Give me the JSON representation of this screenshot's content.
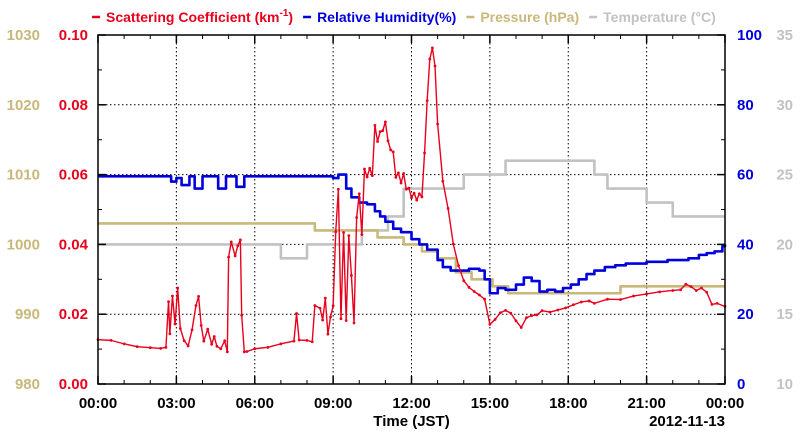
{
  "chart_data": {
    "type": "line",
    "title": "",
    "legend": [
      {
        "label": "Scattering Coefficient (km",
        "sup": "-1",
        "tail": ")",
        "color": "#e8001c"
      },
      {
        "label": "Relative Humidity(%)",
        "color": "#0000dd"
      },
      {
        "label": "Pressure (hPa)",
        "color": "#c8b87a"
      },
      {
        "label": "Temperature (°C)",
        "color": "#c2c2c2"
      }
    ],
    "legend_placement": "top",
    "xlabel": "Time (JST)",
    "date_label": "2012-11-13",
    "x_ticks": [
      "00:00",
      "03:00",
      "06:00",
      "09:00",
      "12:00",
      "15:00",
      "18:00",
      "21:00",
      "00:00"
    ],
    "x_range_hours": [
      0,
      24
    ],
    "grid": true,
    "axes": {
      "scattering": {
        "side": "left-inner",
        "range": [
          0,
          0.1
        ],
        "ticks": [
          "0.00",
          "0.02",
          "0.04",
          "0.06",
          "0.08",
          "0.10"
        ],
        "color": "#e8001c"
      },
      "pressure": {
        "side": "left-outer",
        "range": [
          980,
          1030
        ],
        "ticks": [
          "980",
          "990",
          "1000",
          "1010",
          "1020",
          "1030"
        ],
        "color": "#c8b87a"
      },
      "humidity": {
        "side": "right-inner",
        "range": [
          0,
          100
        ],
        "ticks": [
          "0",
          "20",
          "40",
          "60",
          "80",
          "100"
        ],
        "color": "#0000dd"
      },
      "temperature": {
        "side": "right-outer",
        "range": [
          10,
          35
        ],
        "ticks": [
          "10",
          "15",
          "20",
          "25",
          "30",
          "35"
        ],
        "color": "#c2c2c2"
      }
    },
    "series": [
      {
        "name": "Temperature",
        "axis": "temperature",
        "color": "#c2c2c2",
        "step": true,
        "x": [
          0,
          3.0,
          3.1,
          4.3,
          4.4,
          5.0,
          5.1,
          6.0,
          6.1,
          7.0,
          7.1,
          8.0,
          8.1,
          9.0,
          9.1,
          10.0,
          10.1,
          11.0,
          11.1,
          11.6,
          11.7,
          12.3,
          12.4,
          13.0,
          13.1,
          13.9,
          14.0,
          14.6,
          14.7,
          15.5,
          15.6,
          16.4,
          16.5,
          17.0,
          17.1,
          17.9,
          18.0,
          18.9,
          19.0,
          19.4,
          19.5,
          20.9,
          21.0,
          21.9,
          22.0,
          24.0
        ],
        "y": [
          20,
          20,
          20,
          20,
          20,
          20,
          20,
          20,
          20,
          19,
          19,
          20,
          20,
          20,
          20,
          20,
          21,
          21,
          22,
          22,
          24,
          24,
          24,
          24,
          24,
          24,
          25,
          25,
          25,
          25,
          26,
          26,
          26,
          26,
          26,
          26,
          26,
          26,
          25,
          25,
          24,
          24,
          23,
          23,
          22,
          22
        ]
      },
      {
        "name": "Pressure",
        "axis": "pressure",
        "color": "#c8b87a",
        "step": true,
        "x": [
          0,
          2.6,
          2.7,
          5.6,
          5.7,
          8.2,
          8.3,
          10.0,
          10.1,
          10.6,
          10.7,
          11.6,
          11.7,
          12.3,
          12.4,
          12.9,
          13.0,
          13.6,
          13.7,
          14.2,
          14.3,
          15.0,
          15.1,
          15.6,
          15.7,
          16.9,
          17.0,
          17.9,
          18.0,
          19.9,
          20.0,
          21.9,
          22.0,
          24.0
        ],
        "y": [
          1003,
          1003,
          1003,
          1003,
          1003,
          1003,
          1002,
          1002,
          1002,
          1002,
          1001,
          1001,
          1000,
          1000,
          999,
          999,
          998,
          998,
          996,
          996,
          995,
          995,
          994,
          994,
          993,
          993,
          993,
          993,
          993,
          993,
          994,
          994,
          994,
          994
        ]
      },
      {
        "name": "Relative Humidity",
        "axis": "humidity",
        "color": "#0000dd",
        "step": true,
        "x": [
          0,
          2.5,
          2.8,
          3.0,
          3.2,
          3.5,
          3.7,
          4.0,
          4.3,
          4.6,
          4.9,
          5.0,
          5.3,
          5.6,
          6.0,
          7.0,
          8.0,
          8.5,
          9.0,
          9.2,
          9.5,
          9.7,
          10.0,
          10.3,
          10.6,
          10.8,
          11.0,
          11.3,
          11.6,
          12.0,
          12.3,
          12.6,
          13.0,
          13.2,
          13.5,
          13.8,
          14.2,
          14.6,
          14.8,
          15.0,
          15.3,
          15.6,
          16.0,
          16.3,
          16.6,
          16.9,
          17.2,
          17.5,
          17.8,
          18.1,
          18.4,
          18.7,
          19.0,
          19.4,
          19.8,
          20.2,
          20.6,
          21.0,
          21.4,
          21.8,
          22.2,
          22.6,
          23.0,
          23.3,
          23.6,
          23.9,
          24.0
        ],
        "y": [
          59.5,
          59.5,
          58.0,
          59.0,
          57.0,
          59.5,
          56.0,
          59.5,
          59.5,
          56.0,
          59.5,
          59.5,
          56.5,
          59.5,
          59.5,
          59.5,
          59.5,
          59.5,
          59.0,
          60.0,
          56.0,
          53.5,
          52.0,
          51.5,
          49.5,
          48.0,
          46.5,
          44.5,
          43.5,
          41.5,
          40.0,
          38.5,
          35.5,
          33.5,
          32.5,
          32.5,
          33.0,
          32.5,
          30.0,
          26.0,
          27.5,
          27.0,
          28.5,
          30.5,
          29.5,
          26.5,
          27.0,
          26.5,
          27.5,
          28.5,
          30.0,
          31.5,
          32.5,
          33.5,
          34.0,
          34.5,
          34.5,
          35.0,
          35.0,
          35.5,
          35.5,
          36.0,
          37.0,
          37.5,
          38.0,
          39.5,
          40.0
        ]
      },
      {
        "name": "Scattering Coefficient",
        "axis": "scattering",
        "color": "#e8001c",
        "step": false,
        "markers": true,
        "x": [
          0,
          0.5,
          1.0,
          1.5,
          2.0,
          2.4,
          2.6,
          2.7,
          2.75,
          2.85,
          2.95,
          3.05,
          3.15,
          3.3,
          3.45,
          3.6,
          3.75,
          3.85,
          3.95,
          4.05,
          4.2,
          4.35,
          4.45,
          4.55,
          4.7,
          4.85,
          4.95,
          5.0,
          5.1,
          5.25,
          5.35,
          5.45,
          5.5,
          5.6,
          5.7,
          6.0,
          6.5,
          7.0,
          7.5,
          7.6,
          7.7,
          8.0,
          8.2,
          8.3,
          8.5,
          8.6,
          8.7,
          8.8,
          8.9,
          9.0,
          9.1,
          9.2,
          9.3,
          9.4,
          9.5,
          9.6,
          9.7,
          9.8,
          9.9,
          10.0,
          10.1,
          10.2,
          10.3,
          10.4,
          10.5,
          10.6,
          10.7,
          10.8,
          10.9,
          11.0,
          11.1,
          11.2,
          11.3,
          11.4,
          11.5,
          11.6,
          11.7,
          11.8,
          11.9,
          12.0,
          12.1,
          12.2,
          12.3,
          12.4,
          12.5,
          12.6,
          12.7,
          12.8,
          12.9,
          13.0,
          13.2,
          13.4,
          13.6,
          13.8,
          14.0,
          14.2,
          14.4,
          14.6,
          14.8,
          15.0,
          15.2,
          15.4,
          15.6,
          15.8,
          16.0,
          16.2,
          16.4,
          16.6,
          16.8,
          17.0,
          17.3,
          17.6,
          17.9,
          18.2,
          18.5,
          18.8,
          19.0,
          19.5,
          20.0,
          20.5,
          21.0,
          21.5,
          22.0,
          22.3,
          22.5,
          22.7,
          22.9,
          23.1,
          23.3,
          23.5,
          23.7,
          24.0
        ],
        "y": [
          0.0127,
          0.0125,
          0.0115,
          0.0107,
          0.0104,
          0.0102,
          0.0105,
          0.0236,
          0.0144,
          0.0252,
          0.0172,
          0.0275,
          0.0159,
          0.0124,
          0.0109,
          0.0155,
          0.0225,
          0.0251,
          0.0168,
          0.0123,
          0.0157,
          0.0114,
          0.0136,
          0.0108,
          0.0101,
          0.0124,
          0.0092,
          0.0364,
          0.0407,
          0.0367,
          0.0396,
          0.0413,
          0.0197,
          0.0092,
          0.0093,
          0.0101,
          0.0105,
          0.0115,
          0.0123,
          0.0202,
          0.0126,
          0.0125,
          0.0121,
          0.0225,
          0.0217,
          0.0183,
          0.0246,
          0.0143,
          0.0192,
          0.0224,
          0.0436,
          0.0558,
          0.0187,
          0.0434,
          0.0182,
          0.0425,
          0.0311,
          0.0175,
          0.0477,
          0.0545,
          0.0428,
          0.0616,
          0.0593,
          0.0618,
          0.0597,
          0.0741,
          0.0695,
          0.0723,
          0.0726,
          0.0751,
          0.0697,
          0.0671,
          0.0665,
          0.0592,
          0.0605,
          0.0576,
          0.0603,
          0.0558,
          0.0561,
          0.0534,
          0.0547,
          0.0527,
          0.0545,
          0.0536,
          0.0662,
          0.0812,
          0.0931,
          0.0963,
          0.0911,
          0.0745,
          0.0581,
          0.0503,
          0.0401,
          0.0339,
          0.0296,
          0.0277,
          0.0265,
          0.0255,
          0.0243,
          0.0171,
          0.0185,
          0.0204,
          0.0211,
          0.0203,
          0.0181,
          0.0162,
          0.019,
          0.0196,
          0.0198,
          0.021,
          0.0206,
          0.0212,
          0.0218,
          0.0227,
          0.0235,
          0.0238,
          0.0231,
          0.0243,
          0.0242,
          0.0252,
          0.0258,
          0.0264,
          0.0268,
          0.027,
          0.0286,
          0.0279,
          0.0268,
          0.0275,
          0.0263,
          0.0228,
          0.0231,
          0.0222
        ]
      }
    ]
  }
}
